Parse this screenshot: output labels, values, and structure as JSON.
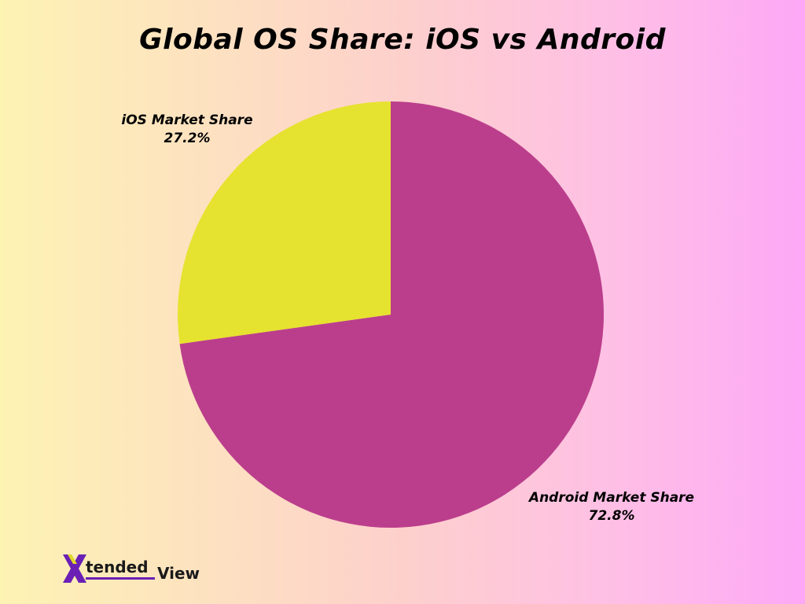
{
  "chart_data": {
    "type": "pie",
    "title": "Global OS Share: iOS vs Android",
    "slices": [
      {
        "label": "iOS Market Share",
        "value": 27.2,
        "value_label": "27.2%",
        "color": "#e6e230"
      },
      {
        "label": "Android Market Share",
        "value": 72.8,
        "value_label": "72.8%",
        "color": "#bb3e8c"
      }
    ],
    "start_angle": "12 o'clock",
    "direction": "counter-clockwise for iOS"
  },
  "logo": {
    "text_part1": "tended",
    "text_part2": "View",
    "colors": {
      "x_primary": "#6a1fb5",
      "x_accent": "#e0d82a"
    }
  }
}
